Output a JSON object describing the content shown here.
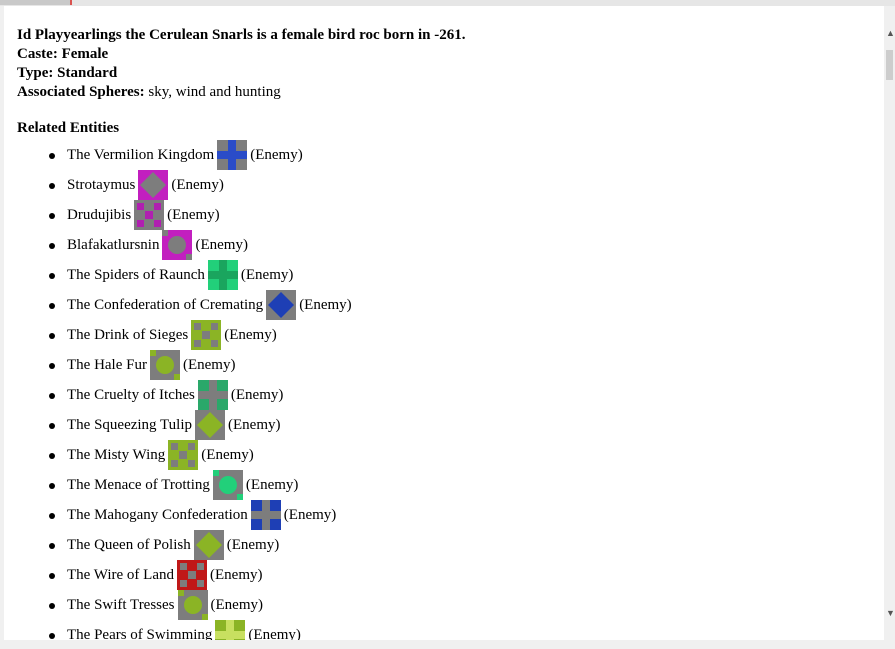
{
  "header": {
    "title_line": "Id Playyearlings the Cerulean Snarls is a female bird roc born in -261.",
    "caste_label": "Caste:",
    "caste_value": "Female",
    "type_label": "Type:",
    "type_value": "Standard",
    "spheres_label": "Associated Spheres:",
    "spheres_value": "sky, wind and hunting"
  },
  "related_title": "Related Entities",
  "entities": [
    {
      "name": "The Vermilion Kingdom",
      "relation": "(Enemy)",
      "bg": "#7d7d7d",
      "fg": "#2a4cc8",
      "icon": "vermilion-kingdom-symbol-icon"
    },
    {
      "name": "Strotaymus",
      "relation": "(Enemy)",
      "bg": "#c21fbf",
      "fg": "#7d7d7d",
      "icon": "strotaymus-symbol-icon"
    },
    {
      "name": "Drudujibis",
      "relation": "(Enemy)",
      "bg": "#7d7d7d",
      "fg": "#b020b0",
      "icon": "drudujibis-symbol-icon"
    },
    {
      "name": "Blafakatlursnin",
      "relation": "(Enemy)",
      "bg": "#c21fbf",
      "fg": "#7d7d7d",
      "icon": "blafakatlursnin-symbol-icon"
    },
    {
      "name": "The Spiders of Raunch",
      "relation": "(Enemy)",
      "bg": "#22d07a",
      "fg": "#1aa55e",
      "icon": "spiders-of-raunch-symbol-icon"
    },
    {
      "name": "The Confederation of Cremating",
      "relation": "(Enemy)",
      "bg": "#7d7d7d",
      "fg": "#1e3fb5",
      "icon": "confederation-of-cremating-symbol-icon"
    },
    {
      "name": "The Drink of Sieges",
      "relation": "(Enemy)",
      "bg": "#8bb425",
      "fg": "#7d7d7d",
      "icon": "drink-of-sieges-symbol-icon"
    },
    {
      "name": "The Hale Fur",
      "relation": "(Enemy)",
      "bg": "#7d7d7d",
      "fg": "#8bb425",
      "icon": "hale-fur-symbol-icon"
    },
    {
      "name": "The Cruelty of Itches",
      "relation": "(Enemy)",
      "bg": "#2aa86a",
      "fg": "#7d7d7d",
      "icon": "cruelty-of-itches-symbol-icon"
    },
    {
      "name": "The Squeezing Tulip",
      "relation": "(Enemy)",
      "bg": "#7d7d7d",
      "fg": "#8bb425",
      "icon": "squeezing-tulip-symbol-icon"
    },
    {
      "name": "The Misty Wing",
      "relation": "(Enemy)",
      "bg": "#8bb425",
      "fg": "#7d7d7d",
      "icon": "misty-wing-symbol-icon"
    },
    {
      "name": "The Menace of Trotting",
      "relation": "(Enemy)",
      "bg": "#7d7d7d",
      "fg": "#22d07a",
      "icon": "menace-of-trotting-symbol-icon"
    },
    {
      "name": "The Mahogany Confederation",
      "relation": "(Enemy)",
      "bg": "#1e3fb5",
      "fg": "#7d7d7d",
      "icon": "mahogany-confederation-symbol-icon"
    },
    {
      "name": "The Queen of Polish",
      "relation": "(Enemy)",
      "bg": "#7d7d7d",
      "fg": "#8bb425",
      "icon": "queen-of-polish-symbol-icon"
    },
    {
      "name": "The Wire of Land",
      "relation": "(Enemy)",
      "bg": "#c01818",
      "fg": "#7d7d7d",
      "icon": "wire-of-land-symbol-icon"
    },
    {
      "name": "The Swift Tresses",
      "relation": "(Enemy)",
      "bg": "#7d7d7d",
      "fg": "#8bb425",
      "icon": "swift-tresses-symbol-icon"
    },
    {
      "name": "The Pears of Swimming",
      "relation": "(Enemy)",
      "bg": "#8bb425",
      "fg": "#c8e060",
      "icon": "pears-of-swimming-symbol-icon"
    }
  ]
}
